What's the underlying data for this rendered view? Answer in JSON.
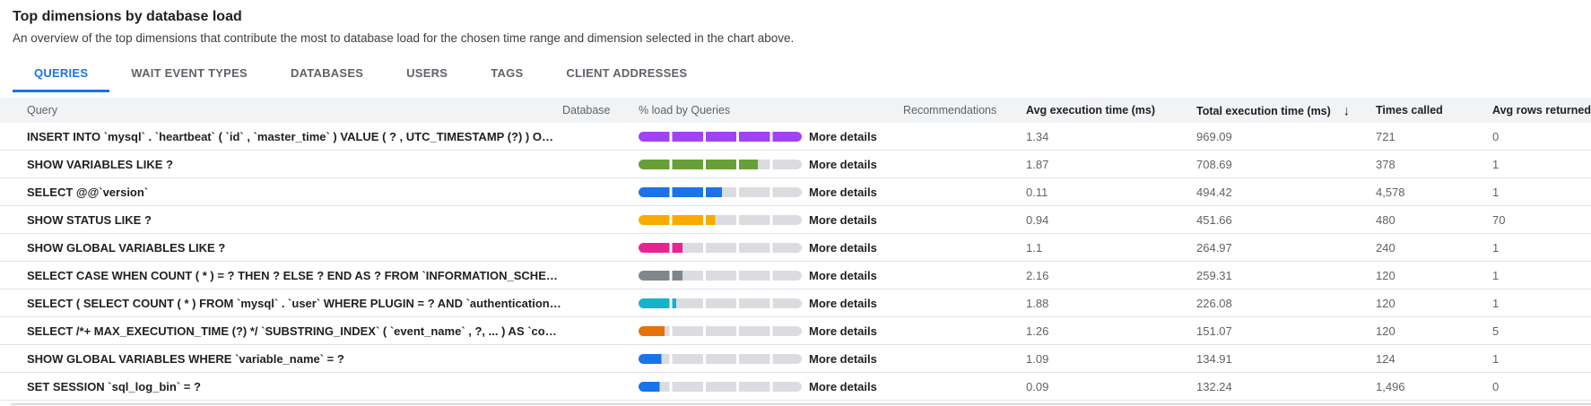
{
  "header": {
    "title": "Top dimensions by database load",
    "description": "An overview of the top dimensions that contribute the most to database load for the chosen time range and dimension selected in the chart above."
  },
  "tabs": [
    {
      "label": "QUERIES",
      "active": true
    },
    {
      "label": "WAIT EVENT TYPES",
      "active": false
    },
    {
      "label": "DATABASES",
      "active": false
    },
    {
      "label": "USERS",
      "active": false
    },
    {
      "label": "TAGS",
      "active": false
    },
    {
      "label": "CLIENT ADDRESSES",
      "active": false
    }
  ],
  "table": {
    "columns": {
      "query": "Query",
      "database": "Database",
      "load": "% load by Queries",
      "recommendations": "Recommendations",
      "avg_exec": "Avg execution time (ms)",
      "total_exec": "Total execution time (ms)",
      "times_called": "Times called",
      "avg_rows": "Avg rows returned"
    },
    "sort": {
      "column": "total_exec",
      "direction": "desc",
      "icon": "arrow-down",
      "glyph": "↓"
    },
    "more_details_label": "More details",
    "track_color": "#dadce0",
    "rows": [
      {
        "query": "INSERT INTO `mysql` . `heartbeat` ( `id` , `master_time` ) VALUE ( ? , UTC_TIMESTAMP (?) ) O…",
        "database": "",
        "load_pct": 100,
        "bar_color": "#a142f4",
        "recommendations": "",
        "avg_exec": "1.34",
        "total_exec": "969.09",
        "times_called": "721",
        "avg_rows": "0"
      },
      {
        "query": "SHOW VARIABLES LIKE ?",
        "database": "",
        "load_pct": 73,
        "bar_color": "#689f38",
        "recommendations": "",
        "avg_exec": "1.87",
        "total_exec": "708.69",
        "times_called": "378",
        "avg_rows": "1"
      },
      {
        "query": "SELECT @@`version`",
        "database": "",
        "load_pct": 51,
        "bar_color": "#1a73e8",
        "recommendations": "",
        "avg_exec": "0.11",
        "total_exec": "494.42",
        "times_called": "4,578",
        "avg_rows": "1"
      },
      {
        "query": "SHOW STATUS LIKE ?",
        "database": "",
        "load_pct": 47,
        "bar_color": "#f9ab00",
        "recommendations": "",
        "avg_exec": "0.94",
        "total_exec": "451.66",
        "times_called": "480",
        "avg_rows": "70"
      },
      {
        "query": "SHOW GLOBAL VARIABLES LIKE ?",
        "database": "",
        "load_pct": 27,
        "bar_color": "#e52592",
        "recommendations": "",
        "avg_exec": "1.1",
        "total_exec": "264.97",
        "times_called": "240",
        "avg_rows": "1"
      },
      {
        "query": "SELECT CASE WHEN COUNT ( * ) = ? THEN ? ELSE ? END AS ? FROM `INFORMATION_SCHEM…",
        "database": "",
        "load_pct": 27,
        "bar_color": "#80868b",
        "recommendations": "",
        "avg_exec": "2.16",
        "total_exec": "259.31",
        "times_called": "120",
        "avg_rows": "1"
      },
      {
        "query": "SELECT ( SELECT COUNT ( * ) FROM `mysql` . `user` WHERE PLUGIN = ? AND `authentication…",
        "database": "",
        "load_pct": 23,
        "bar_color": "#12b5cb",
        "recommendations": "",
        "avg_exec": "1.88",
        "total_exec": "226.08",
        "times_called": "120",
        "avg_rows": "1"
      },
      {
        "query": "SELECT /*+ MAX_EXECUTION_TIME (?) */ `SUBSTRING_INDEX` ( `event_name` , ?, ... ) AS `co…",
        "database": "",
        "load_pct": 16,
        "bar_color": "#e8710a",
        "recommendations": "",
        "avg_exec": "1.26",
        "total_exec": "151.07",
        "times_called": "120",
        "avg_rows": "5"
      },
      {
        "query": "SHOW GLOBAL VARIABLES WHERE `variable_name` = ?",
        "database": "",
        "load_pct": 14,
        "bar_color": "#1a73e8",
        "recommendations": "",
        "avg_exec": "1.09",
        "total_exec": "134.91",
        "times_called": "124",
        "avg_rows": "1"
      },
      {
        "query": "SET SESSION `sql_log_bin` = ?",
        "database": "",
        "load_pct": 13,
        "bar_color": "#1a73e8",
        "recommendations": "",
        "avg_exec": "0.09",
        "total_exec": "132.24",
        "times_called": "1,496",
        "avg_rows": "0"
      }
    ]
  }
}
